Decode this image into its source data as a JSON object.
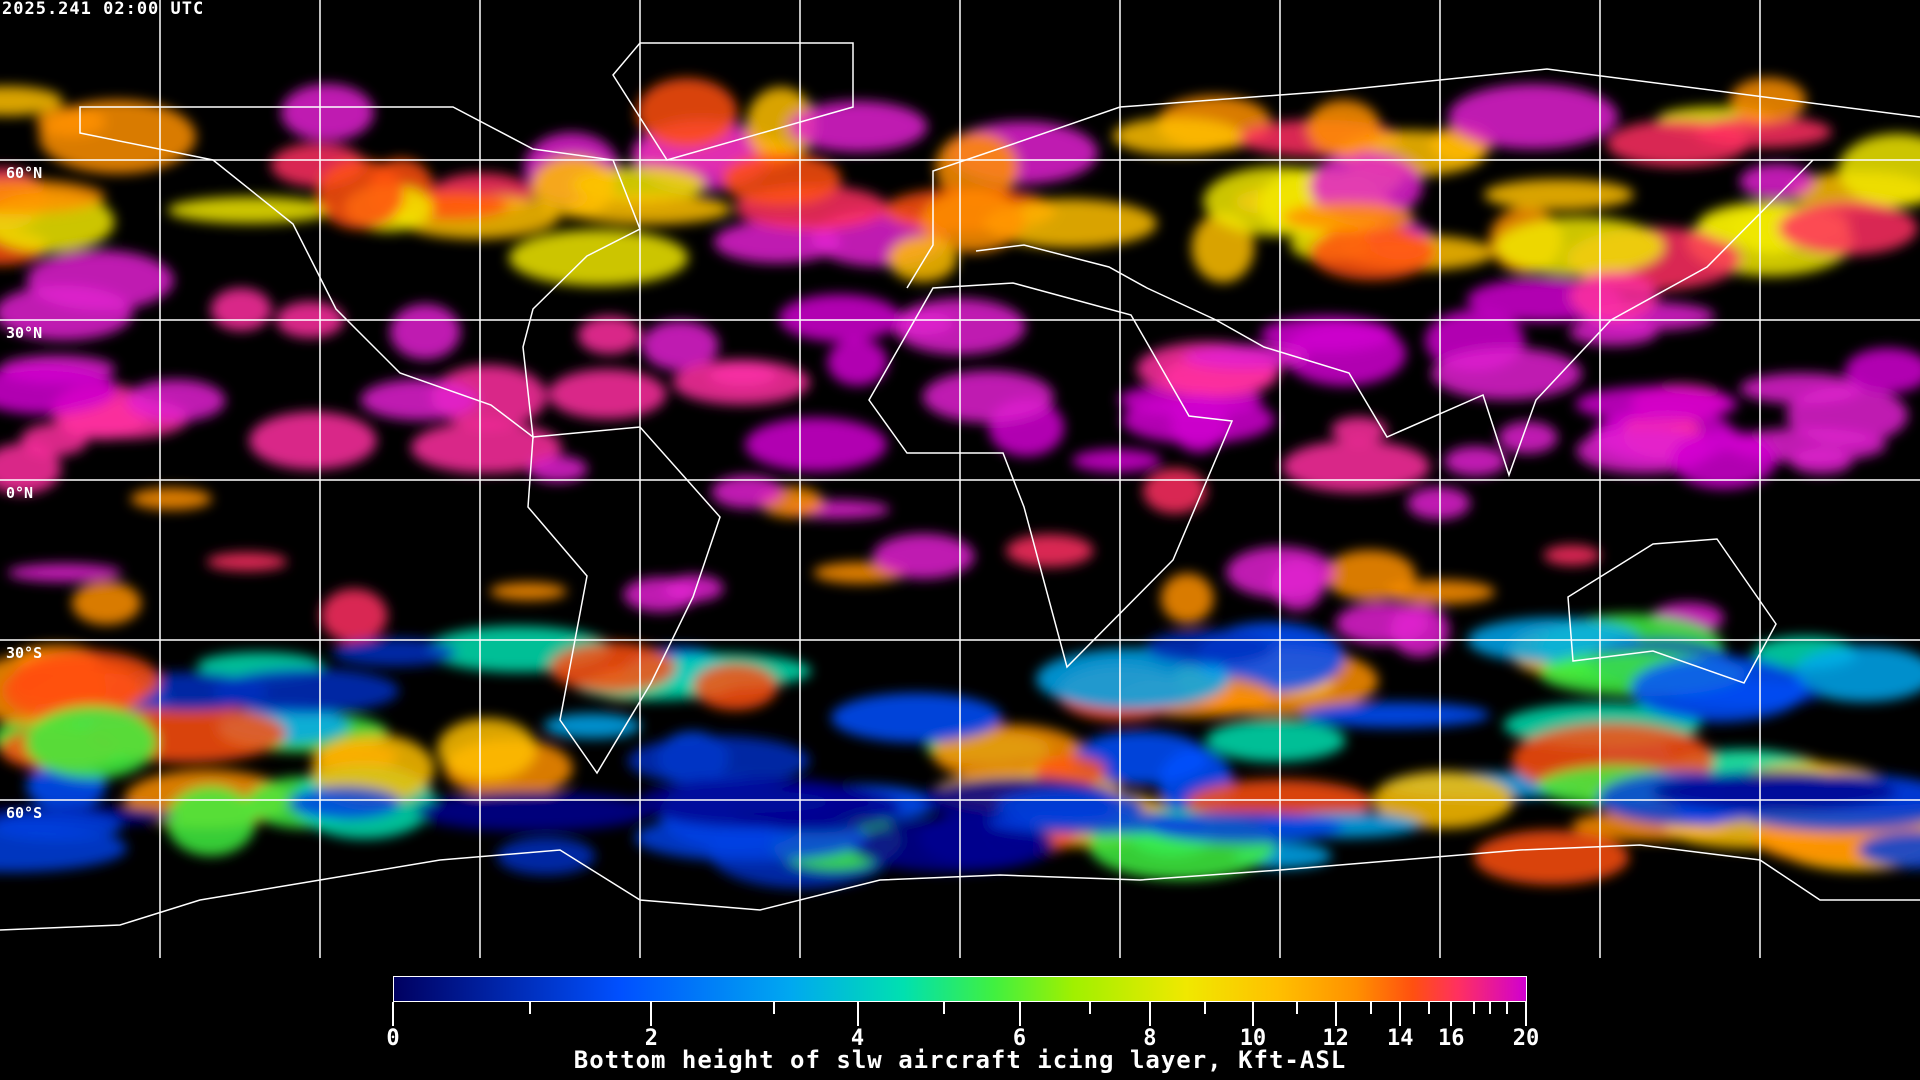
{
  "header": {
    "timestamp": "2025.241 02:00 UTC"
  },
  "map": {
    "projection": "equirectangular",
    "grid_lat_labels": [
      "60°N",
      "30°N",
      "0°N",
      "30°S",
      "60°S"
    ],
    "grid_spacing_deg": 30
  },
  "colorbar": {
    "title": "Bottom height of slw aircraft icing layer, Kft-ASL",
    "min": 0,
    "max": 20,
    "major_ticks": [
      "0",
      "2",
      "4",
      "6",
      "8",
      "10",
      "12",
      "14",
      "16",
      "20"
    ],
    "colors": [
      "#000060",
      "#0050ff",
      "#00a8f0",
      "#00e0b0",
      "#40f040",
      "#a0f000",
      "#f0e800",
      "#ffc000",
      "#ff9000",
      "#ff5010",
      "#ff3060",
      "#d000d0"
    ]
  }
}
